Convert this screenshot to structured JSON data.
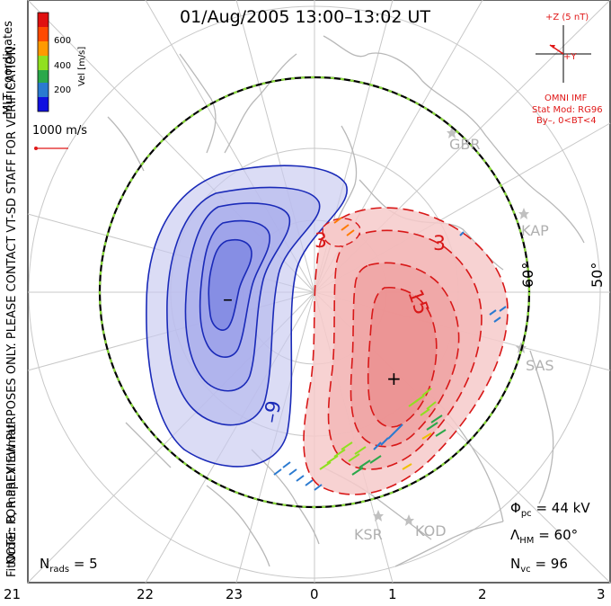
{
  "title": "01/Aug/2005 13:00–13:02 UT",
  "side_notes": {
    "mlt_coords": "MLT coordinates",
    "preview_note": "NOTE: FOR PREVIEW PURPOSES ONLY. PLEASE CONTACT VT-SD STAFF FOR VERIFICATION.",
    "fit_order": "FitOrder: 8, mapEX format"
  },
  "velocity_scale": {
    "label": "Vel [m/s]",
    "ticks": [
      "600",
      "400",
      "200"
    ],
    "colors": [
      "#e01010",
      "#ff7a00",
      "#f0c000",
      "#90e020",
      "#2aa84a",
      "#2a7ad0",
      "#1010e0"
    ]
  },
  "reference_vector": {
    "label": "1000 m/s",
    "color": "#e01818"
  },
  "imf": {
    "z_label": "+Z (5 nT)",
    "y_label": "+Y",
    "omni": "OMNI IMF",
    "stat_mod": "Stat Mod: RG96",
    "conditions": "By–, 0<BT<4"
  },
  "latitude_labels": [
    "60°",
    "50°"
  ],
  "stations": [
    "GBR",
    "KAP",
    "SAS",
    "KSR",
    "KOD"
  ],
  "contour_labels": {
    "neg": "–9",
    "pos_outer": "3",
    "pos_inner": "15",
    "pos_small": "3",
    "min_marker": "–",
    "max_marker": "+"
  },
  "stats": {
    "phi_pc": "Φ",
    "phi_pc_sub": "pc",
    "phi_pc_val": "= 44 kV",
    "lambda_hm": "Λ",
    "lambda_hm_sub": "HM",
    "lambda_hm_val": "= 60°",
    "n_vc": "N",
    "n_vc_sub": "vc",
    "n_vc_val": "= 96",
    "n_rads": "N",
    "n_rads_sub": "rads",
    "n_rads_val": "= 5"
  },
  "mlt_ticks": [
    "21",
    "22",
    "23",
    "0",
    "1",
    "2",
    "3"
  ],
  "colors": {
    "negative_contour": "#1a2ab8",
    "negative_fill": "#c8caf0",
    "positive_contour": "#d81818",
    "positive_fill": "#f6caca",
    "grid": "#c8c8c8",
    "coast": "#b8b8b8",
    "boundary_green": "#8adc3a"
  }
}
